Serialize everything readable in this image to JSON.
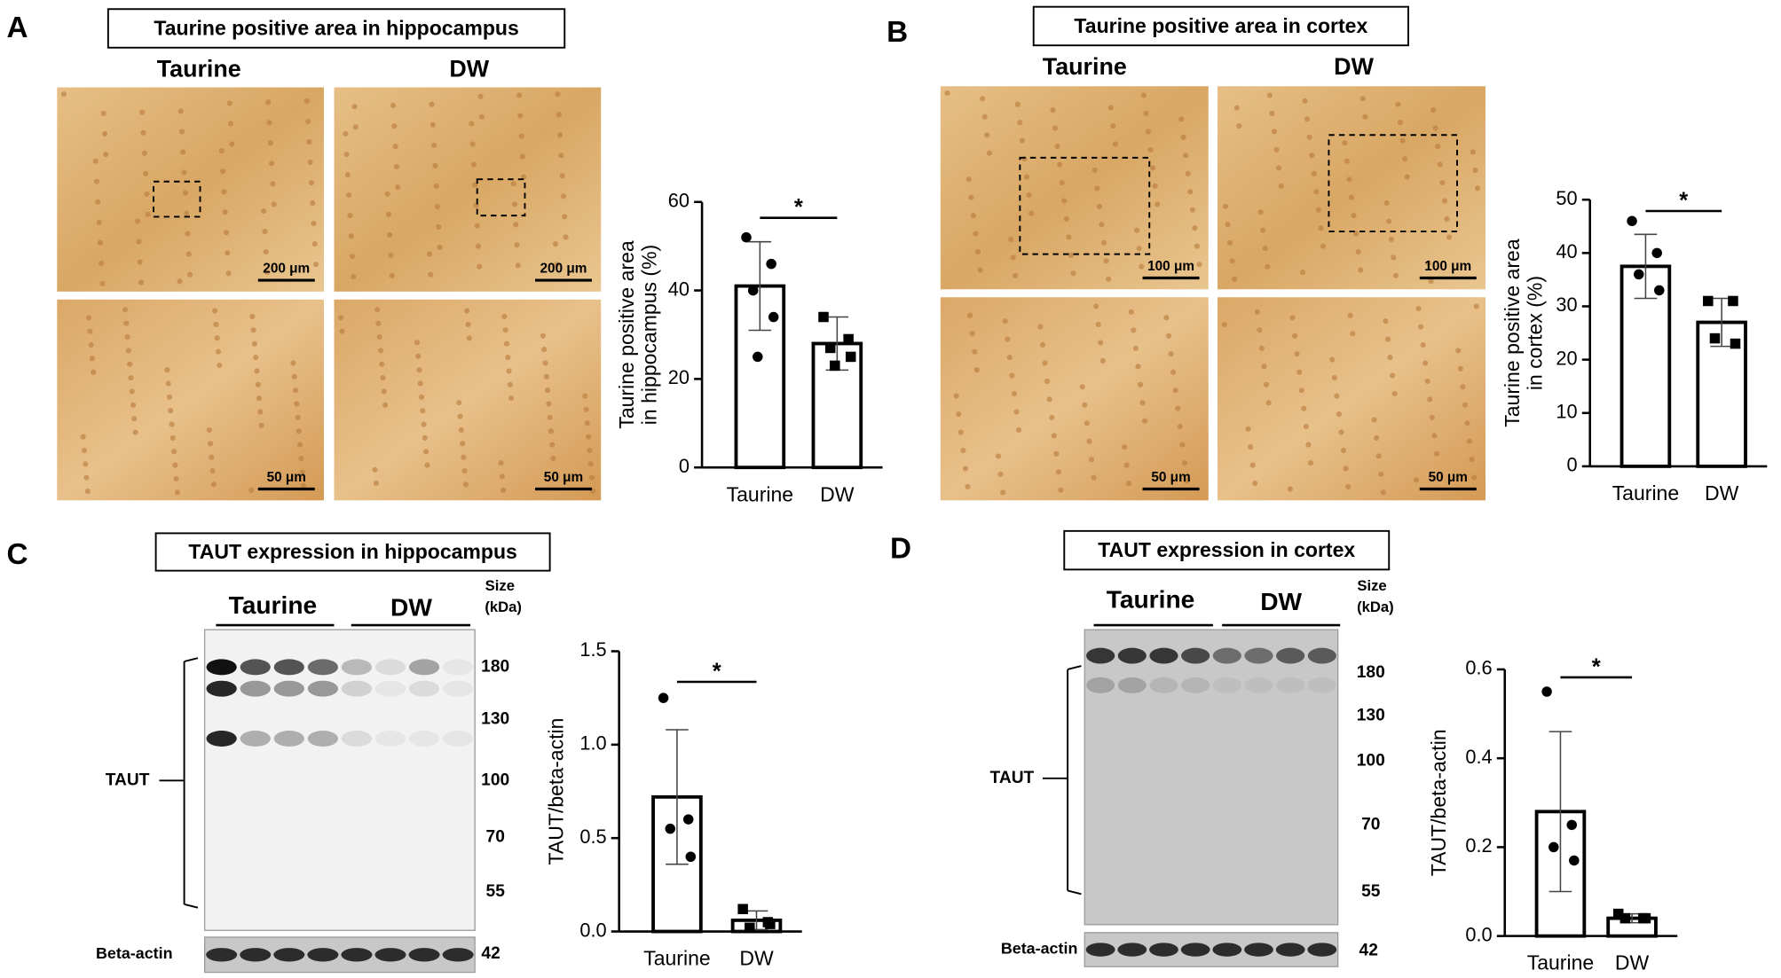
{
  "panels": [
    {
      "letter": "A",
      "title": "Taurine positive area  in hippocampus",
      "image_labels": [
        "Taurine",
        "DW"
      ],
      "scale_bars": [
        "200 μm",
        "200 μm",
        "50 μm",
        "50 μm"
      ]
    },
    {
      "letter": "B",
      "title": "Taurine positive area  in cortex",
      "image_labels": [
        "Taurine",
        "DW"
      ],
      "scale_bars": [
        "100 μm",
        "100 μm",
        "50 μm",
        "50 μm"
      ]
    },
    {
      "letter": "C",
      "title": "TAUT expression in hippocampus",
      "lane_groups": [
        "Taurine",
        "DW"
      ],
      "size_header": [
        "Size",
        "(kDa)"
      ],
      "sizes": [
        "180",
        "130",
        "100",
        "70",
        "55"
      ],
      "band_label": "TAUT",
      "loading_label": "Beta-actin",
      "loading_size": "42"
    },
    {
      "letter": "D",
      "title": "TAUT expression in cortex",
      "lane_groups": [
        "Taurine",
        "DW"
      ],
      "size_header": [
        "Size",
        "(kDa)"
      ],
      "sizes": [
        "180",
        "130",
        "100",
        "70",
        "55"
      ],
      "band_label": "TAUT",
      "loading_label": "Beta-actin",
      "loading_size": "42"
    }
  ],
  "chart_data": [
    {
      "type": "bar",
      "ylabel": [
        "Taurine positive area",
        "in hippocampus (%)"
      ],
      "categories": [
        "Taurine",
        "DW"
      ],
      "values": [
        41,
        28
      ],
      "errors": [
        10,
        6
      ],
      "points": [
        [
          52,
          46,
          40,
          34,
          25
        ],
        [
          34,
          29,
          27,
          25,
          23
        ]
      ],
      "ylim": [
        0,
        60
      ],
      "yticks": [
        0,
        20,
        40,
        60
      ],
      "color": "#ffffff",
      "edge_color": "#000000",
      "annotation": "*"
    },
    {
      "type": "bar",
      "ylabel": [
        "Taurine positive area",
        "in cortex (%)"
      ],
      "categories": [
        "Taurine",
        "DW"
      ],
      "values": [
        37.5,
        27
      ],
      "errors": [
        6,
        4.5
      ],
      "points": [
        [
          46,
          40,
          36,
          33
        ],
        [
          31,
          31,
          24,
          23
        ]
      ],
      "ylim": [
        0,
        50
      ],
      "yticks": [
        0,
        10,
        20,
        30,
        40,
        50
      ],
      "color": "#ffffff",
      "edge_color": "#000000",
      "annotation": "*"
    },
    {
      "type": "bar",
      "ylabel": [
        "TAUT/beta-actin"
      ],
      "categories": [
        "Taurine",
        "DW"
      ],
      "values": [
        0.72,
        0.06
      ],
      "errors": [
        0.36,
        0.05
      ],
      "points": [
        [
          1.25,
          0.6,
          0.55,
          0.4
        ],
        [
          0.12,
          0.05,
          0.02,
          0.04
        ]
      ],
      "ylim": [
        0,
        1.5
      ],
      "yticks": [
        {
          "value": 0,
          "label": "0.0"
        },
        {
          "value": 0.5,
          "label": "0.5"
        },
        {
          "value": 1,
          "label": "1.0"
        },
        {
          "value": 1.5,
          "label": "1.5"
        }
      ],
      "color": "#ffffff",
      "edge_color": "#000000",
      "annotation": "*"
    },
    {
      "type": "bar",
      "ylabel": [
        "TAUT/beta-actin"
      ],
      "categories": [
        "Taurine",
        "DW"
      ],
      "values": [
        0.28,
        0.04
      ],
      "errors": [
        0.18,
        0.01
      ],
      "points": [
        [
          0.55,
          0.25,
          0.2,
          0.17
        ],
        [
          0.05,
          0.04,
          0.04,
          0.04
        ]
      ],
      "ylim": [
        0,
        0.6
      ],
      "yticks": [
        {
          "value": 0,
          "label": "0.0"
        },
        {
          "value": 0.2,
          "label": "0.2"
        },
        {
          "value": 0.4,
          "label": "0.4"
        },
        {
          "value": 0.6,
          "label": "0.6"
        }
      ],
      "color": "#ffffff",
      "edge_color": "#000000",
      "annotation": "*"
    }
  ]
}
